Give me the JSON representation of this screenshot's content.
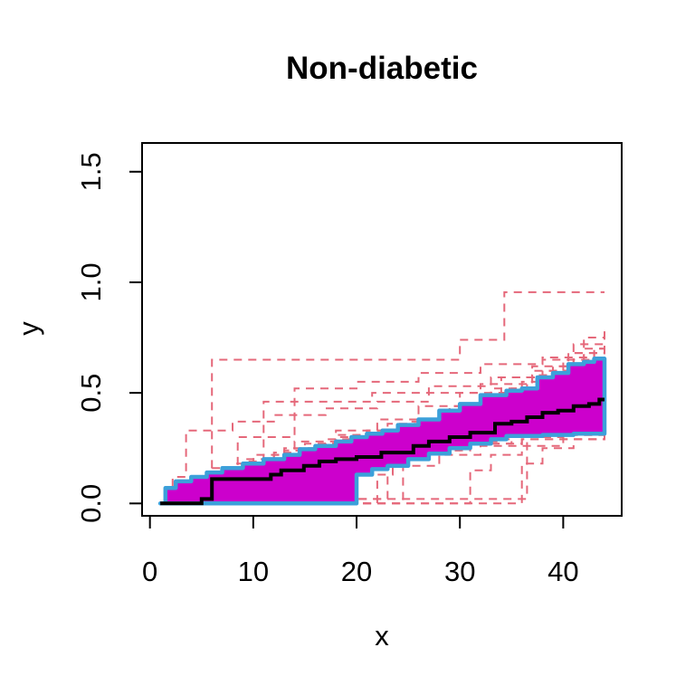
{
  "chart_data": {
    "type": "line",
    "title": "Non-diabetic",
    "xlabel": "x",
    "ylabel": "y",
    "xlim": [
      -0.76,
      45.66
    ],
    "ylim": [
      -0.056,
      1.63
    ],
    "xticks": [
      0,
      10,
      20,
      30,
      40
    ],
    "ytick_labels": [
      "0.0",
      "0.5",
      "1.0",
      "1.5"
    ],
    "ytick_values": [
      0.0,
      0.5,
      1.0,
      1.5
    ],
    "grid": false,
    "legend": "none",
    "colors": {
      "background": "#FFFFFF",
      "band_fill": "#CC00CC",
      "band_edge": "#3CA0DA",
      "median": "#000000",
      "trajectory": "#E5687A",
      "axis": "#000000"
    },
    "band": {
      "upper_x": [
        1,
        1.5,
        2.5,
        4,
        5.5,
        7,
        9,
        11,
        13,
        14.5,
        16,
        18,
        19.5,
        21,
        22.5,
        24,
        26,
        28,
        30,
        32,
        34.5,
        36,
        37.5,
        39,
        40.5,
        42,
        43,
        44
      ],
      "upper_y": [
        0,
        0.07,
        0.1,
        0.12,
        0.14,
        0.16,
        0.18,
        0.2,
        0.22,
        0.245,
        0.26,
        0.28,
        0.3,
        0.315,
        0.33,
        0.355,
        0.38,
        0.42,
        0.45,
        0.49,
        0.51,
        0.52,
        0.57,
        0.59,
        0.63,
        0.64,
        0.655,
        0.655
      ],
      "lower_x": [
        1,
        19.3,
        20,
        21.5,
        23,
        25,
        27,
        29,
        31,
        33,
        34.5,
        38,
        41,
        44
      ],
      "lower_y": [
        0,
        0,
        0.13,
        0.155,
        0.17,
        0.2,
        0.225,
        0.25,
        0.27,
        0.29,
        0.305,
        0.31,
        0.315,
        0.32
      ]
    },
    "median": {
      "x": [
        1,
        5,
        6,
        11.7,
        12.7,
        14.9,
        16.4,
        18,
        20,
        22.4,
        25.5,
        27,
        29,
        31,
        33.4,
        35,
        36.5,
        38,
        39.5,
        41,
        42.5,
        43.5,
        44
      ],
      "y": [
        0,
        0.02,
        0.11,
        0.13,
        0.15,
        0.17,
        0.19,
        0.2,
        0.21,
        0.23,
        0.26,
        0.28,
        0.3,
        0.32,
        0.36,
        0.37,
        0.39,
        0.41,
        0.42,
        0.44,
        0.45,
        0.47,
        0.47
      ]
    },
    "trajectories": [
      {
        "x": [
          1,
          3,
          6,
          30,
          34.3,
          44
        ],
        "y": [
          0,
          0.1,
          0.65,
          0.74,
          0.955,
          0.955
        ]
      },
      {
        "x": [
          1,
          4,
          7,
          9,
          11,
          21.5,
          27,
          33,
          39,
          44
        ],
        "y": [
          0,
          0.06,
          0.12,
          0.2,
          0.46,
          0.5,
          0.53,
          0.57,
          0.6,
          0.62
        ]
      },
      {
        "x": [
          1,
          5,
          8.5,
          14,
          20,
          26,
          32,
          38,
          44
        ],
        "y": [
          0,
          0.1,
          0.3,
          0.52,
          0.55,
          0.59,
          0.63,
          0.66,
          0.68
        ]
      },
      {
        "x": [
          1,
          21,
          22,
          23.5,
          27,
          31,
          35,
          39,
          44
        ],
        "y": [
          0,
          0,
          0.13,
          0.2,
          0.24,
          0.27,
          0.3,
          0.32,
          0.33
        ]
      },
      {
        "x": [
          1,
          23,
          24.5,
          28,
          32,
          36,
          40,
          44
        ],
        "y": [
          0,
          0,
          0.17,
          0.22,
          0.26,
          0.29,
          0.31,
          0.32
        ]
      },
      {
        "x": [
          1,
          29.5,
          31,
          33,
          36,
          40,
          44
        ],
        "y": [
          0,
          0,
          0.15,
          0.22,
          0.26,
          0.29,
          0.3
        ]
      },
      {
        "x": [
          1,
          34.5,
          36,
          38,
          41,
          44
        ],
        "y": [
          0,
          0,
          0.18,
          0.25,
          0.29,
          0.31
        ]
      },
      {
        "x": [
          1,
          19,
          20,
          35,
          36.5,
          40,
          44
        ],
        "y": [
          0,
          0,
          0.02,
          0.02,
          0.3,
          0.31,
          0.32
        ]
      },
      {
        "x": [
          1,
          6,
          7.5,
          22,
          23,
          26,
          30,
          36,
          44
        ],
        "y": [
          0,
          0,
          0.02,
          0.02,
          0.2,
          0.24,
          0.27,
          0.29,
          0.3
        ]
      },
      {
        "x": [
          1,
          2,
          4,
          6,
          9,
          12,
          15,
          18,
          22,
          26,
          30,
          34,
          38,
          42,
          44
        ],
        "y": [
          0,
          0.05,
          0.1,
          0.14,
          0.17,
          0.2,
          0.23,
          0.25,
          0.28,
          0.3,
          0.33,
          0.37,
          0.4,
          0.43,
          0.44
        ]
      },
      {
        "x": [
          1,
          3,
          5,
          8,
          11,
          14,
          17,
          20,
          24,
          28,
          32,
          36,
          40,
          44
        ],
        "y": [
          0,
          0.07,
          0.12,
          0.16,
          0.2,
          0.24,
          0.27,
          0.3,
          0.33,
          0.37,
          0.42,
          0.47,
          0.55,
          0.6
        ]
      },
      {
        "x": [
          1,
          2.5,
          4.5,
          7,
          10,
          13,
          16,
          19,
          23,
          27,
          31,
          35,
          39,
          43,
          44
        ],
        "y": [
          0,
          0.04,
          0.09,
          0.13,
          0.17,
          0.21,
          0.25,
          0.28,
          0.32,
          0.36,
          0.41,
          0.47,
          0.55,
          0.63,
          0.65
        ]
      },
      {
        "x": [
          1,
          3.5,
          6,
          9,
          12,
          15,
          18,
          21,
          25,
          29,
          33,
          37,
          41,
          44
        ],
        "y": [
          0,
          0.08,
          0.14,
          0.19,
          0.23,
          0.27,
          0.3,
          0.33,
          0.37,
          0.42,
          0.49,
          0.58,
          0.68,
          0.72
        ]
      },
      {
        "x": [
          1,
          4,
          8,
          12,
          16,
          20,
          24,
          28,
          32,
          36,
          40,
          44
        ],
        "y": [
          0,
          0.1,
          0.16,
          0.22,
          0.27,
          0.31,
          0.35,
          0.4,
          0.46,
          0.55,
          0.65,
          0.72
        ]
      },
      {
        "x": [
          1,
          5,
          9,
          13,
          17,
          21,
          25,
          29,
          33,
          37,
          41,
          44
        ],
        "y": [
          0,
          0.12,
          0.18,
          0.24,
          0.29,
          0.33,
          0.38,
          0.44,
          0.52,
          0.62,
          0.72,
          0.78
        ]
      },
      {
        "x": [
          1,
          4.5,
          8.5,
          12.5,
          16.5,
          20.5,
          24.5,
          28.5,
          32.5,
          36.5,
          40.5,
          44
        ],
        "y": [
          0,
          0.09,
          0.15,
          0.2,
          0.26,
          0.3,
          0.35,
          0.41,
          0.48,
          0.57,
          0.68,
          0.74
        ]
      },
      {
        "x": [
          1,
          6,
          10,
          14,
          18,
          22,
          26,
          30,
          34,
          38,
          42,
          44
        ],
        "y": [
          0,
          0.11,
          0.17,
          0.23,
          0.28,
          0.32,
          0.37,
          0.43,
          0.5,
          0.6,
          0.7,
          0.76
        ]
      },
      {
        "x": [
          1,
          3,
          7,
          11,
          15,
          19,
          23,
          27,
          31,
          35,
          39,
          43,
          44
        ],
        "y": [
          0,
          0.06,
          0.13,
          0.19,
          0.25,
          0.29,
          0.33,
          0.38,
          0.44,
          0.52,
          0.62,
          0.7,
          0.71
        ]
      },
      {
        "x": [
          1,
          5,
          10,
          15,
          20,
          25,
          30,
          35,
          40,
          44
        ],
        "y": [
          0,
          0.08,
          0.15,
          0.2,
          0.24,
          0.27,
          0.29,
          0.3,
          0.31,
          0.32
        ]
      },
      {
        "x": [
          1,
          6,
          11,
          16,
          21,
          26,
          31,
          36,
          41,
          44
        ],
        "y": [
          0,
          0.1,
          0.16,
          0.21,
          0.25,
          0.28,
          0.3,
          0.31,
          0.32,
          0.33
        ]
      },
      {
        "x": [
          1,
          4,
          9,
          14,
          19,
          24,
          29,
          34,
          39,
          44
        ],
        "y": [
          0,
          0.07,
          0.14,
          0.19,
          0.23,
          0.26,
          0.28,
          0.3,
          0.32,
          0.34
        ]
      },
      {
        "x": [
          1,
          7,
          12,
          17,
          22,
          27,
          32,
          37,
          42,
          44
        ],
        "y": [
          0,
          0.12,
          0.18,
          0.23,
          0.26,
          0.29,
          0.31,
          0.33,
          0.35,
          0.36
        ]
      },
      {
        "x": [
          1,
          5.5,
          10.5,
          15.5,
          20.5,
          25.5,
          30.5,
          35.5,
          40.5,
          44
        ],
        "y": [
          0,
          0.09,
          0.16,
          0.22,
          0.26,
          0.28,
          0.3,
          0.32,
          0.34,
          0.35
        ]
      },
      {
        "x": [
          1,
          8,
          13,
          18,
          23,
          28,
          33,
          38,
          43,
          44
        ],
        "y": [
          0,
          0.13,
          0.19,
          0.24,
          0.28,
          0.3,
          0.32,
          0.34,
          0.36,
          0.37
        ]
      },
      {
        "x": [
          1,
          3,
          6,
          10,
          14,
          18,
          22,
          26,
          30,
          34,
          38,
          42,
          44
        ],
        "y": [
          0,
          0.09,
          0.16,
          0.22,
          0.28,
          0.33,
          0.38,
          0.44,
          0.5,
          0.57,
          0.65,
          0.75,
          0.8
        ]
      },
      {
        "x": [
          1,
          4,
          8,
          13,
          18,
          23,
          28,
          33,
          38,
          43,
          44
        ],
        "y": [
          0,
          0.11,
          0.18,
          0.25,
          0.31,
          0.36,
          0.42,
          0.5,
          0.58,
          0.68,
          0.7
        ]
      },
      {
        "x": [
          1,
          2.2,
          3.5,
          8,
          12,
          17,
          22,
          27,
          32,
          37,
          42,
          44
        ],
        "y": [
          0,
          0.12,
          0.33,
          0.37,
          0.4,
          0.43,
          0.46,
          0.5,
          0.54,
          0.6,
          0.64,
          0.65
        ]
      }
    ]
  }
}
